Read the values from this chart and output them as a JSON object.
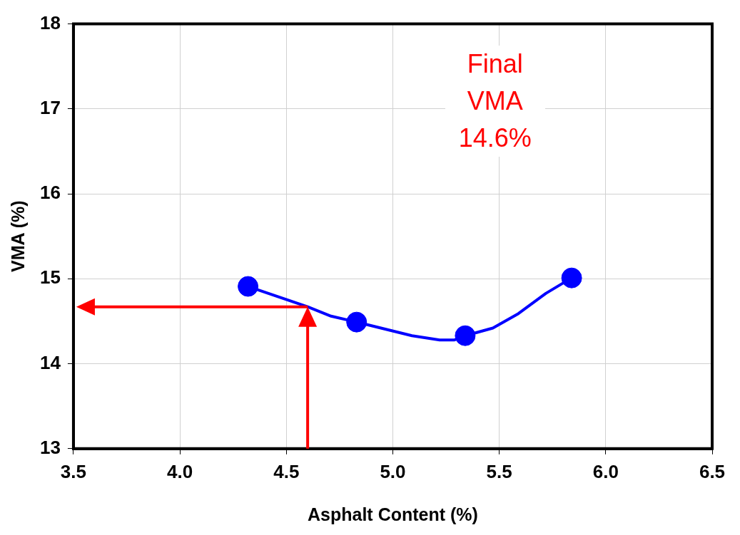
{
  "chart_data": {
    "type": "scatter",
    "xlabel": "Asphalt Content (%)",
    "ylabel": "VMA (%)",
    "xlim": [
      3.5,
      6.5
    ],
    "xticks": [
      {
        "value": 3.5,
        "label": "3.5"
      },
      {
        "value": 4,
        "label": "4.0"
      },
      {
        "value": 4.5,
        "label": "4.5"
      },
      {
        "value": 5,
        "label": "5.0"
      },
      {
        "value": 5.5,
        "label": "5.5"
      },
      {
        "value": 6,
        "label": "6.0"
      },
      {
        "value": 6.5,
        "label": "6.5"
      }
    ],
    "ylim": [
      13,
      18
    ],
    "yticks": [
      13,
      14,
      15,
      16,
      17,
      18
    ],
    "grid": true,
    "legend": false,
    "series": [
      {
        "type": "line",
        "color": "#0000ff",
        "marker": "none",
        "x": [
          4.32,
          4.6,
          4.71,
          4.83,
          5.09,
          5.22,
          5.29,
          5.34,
          5.47,
          5.59,
          5.72,
          5.84
        ],
        "values": [
          14.91,
          14.67,
          14.56,
          14.49,
          14.33,
          14.28,
          14.28,
          14.33,
          14.42,
          14.59,
          14.83,
          15.01
        ]
      },
      {
        "color": "#0000ff",
        "marker": "circle",
        "x": [
          4.32,
          4.83,
          5.34,
          5.84
        ],
        "values": [
          14.91,
          14.49,
          14.33,
          15.01
        ]
      }
    ],
    "ref_lines": [
      {
        "axis": "x",
        "value": 4.6,
        "color": "#ff0000"
      },
      {
        "axis": "y",
        "value": 14.67,
        "color": "#ff0000"
      }
    ],
    "annotations": [
      "Final VMA 14.6%"
    ]
  }
}
